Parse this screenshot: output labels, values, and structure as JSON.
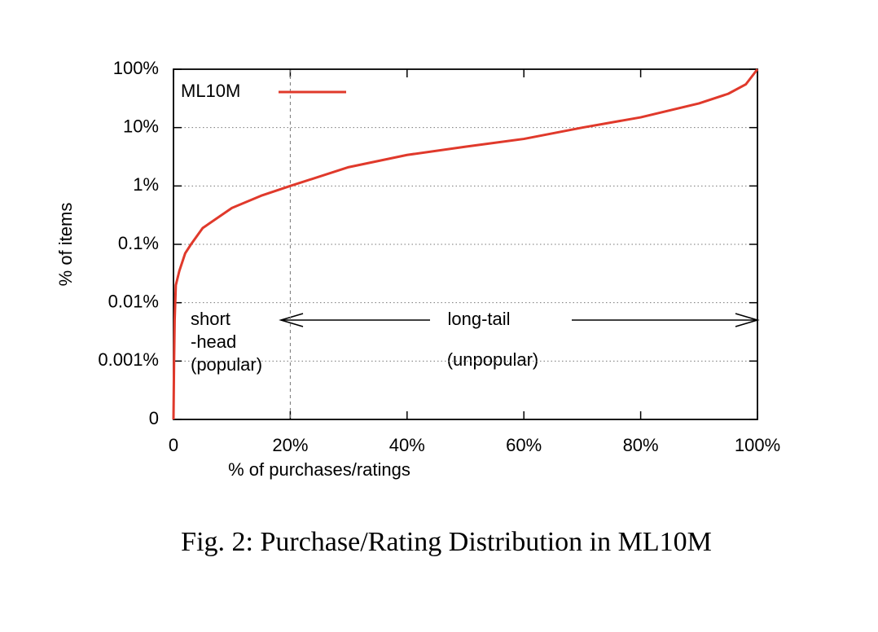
{
  "chart_data": {
    "type": "line",
    "log_y": true,
    "xlabel": "% of purchases/ratings",
    "ylabel": "% of items",
    "caption": "Fig. 2: Purchase/Rating Distribution in ML10M",
    "xlim": [
      0,
      100
    ],
    "xticks": [
      0,
      {
        "value": 20,
        "label": "20%"
      },
      {
        "value": 40,
        "label": "40%"
      },
      {
        "value": 60,
        "label": "60%"
      },
      {
        "value": 80,
        "label": "80%"
      },
      {
        "value": 100,
        "label": "100%"
      }
    ],
    "ylim": [
      0.0001,
      100
    ],
    "yticks": [
      {
        "value": 0.0001,
        "label": "0"
      },
      {
        "value": 0.001,
        "label": "0.001%"
      },
      {
        "value": 0.01,
        "label": "0.01%"
      },
      {
        "value": 0.1,
        "label": "0.1%"
      },
      {
        "value": 1,
        "label": "1%"
      },
      {
        "value": 10,
        "label": "10%"
      },
      {
        "value": 100,
        "label": "100%"
      }
    ],
    "grid": true,
    "legend": "upper left",
    "vlines": [
      20
    ],
    "annotations": [
      "short",
      "-head",
      "(popular)",
      "long-tail",
      "(unpopular)"
    ],
    "x": [
      0,
      0.1,
      0.2,
      0.4,
      1,
      2,
      3,
      5,
      10,
      15,
      20,
      30,
      40,
      50,
      60,
      70,
      80,
      90,
      95,
      98,
      100
    ],
    "series": [
      {
        "name": "ML10M",
        "color": "#e0392b",
        "values": [
          0.0001,
          0.001,
          0.005,
          0.02,
          0.035,
          0.07,
          0.1,
          0.19,
          0.42,
          0.68,
          1,
          2.1,
          3.4,
          4.7,
          6.4,
          10,
          15,
          26,
          38,
          55,
          100
        ]
      }
    ]
  }
}
